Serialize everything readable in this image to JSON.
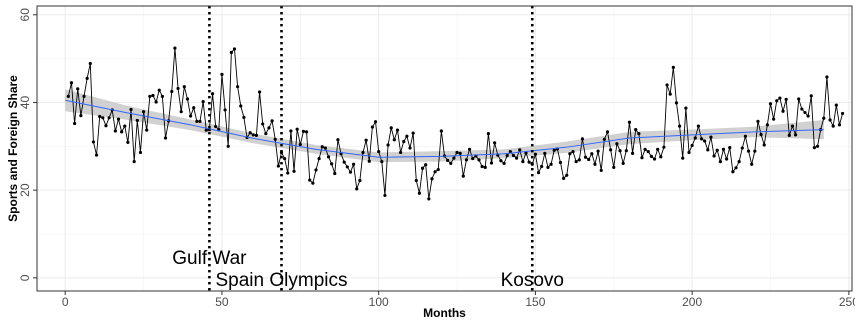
{
  "chart_data": {
    "type": "line",
    "xlabel": "Months",
    "ylabel": "Sports and Foreign Share",
    "xlim": [
      -9,
      251
    ],
    "ylim": [
      -3,
      62
    ],
    "x_ticks": [
      0,
      50,
      100,
      150,
      200,
      250
    ],
    "y_ticks": [
      0,
      20,
      40,
      60
    ],
    "grid": true,
    "series": [
      {
        "values": [
          41.4,
          44.5,
          35.2,
          43.1,
          37.0,
          41.4,
          45.5,
          48.9,
          31.0,
          28.0,
          36.8,
          36.5,
          34.7,
          36.5,
          38.3,
          33.5,
          36.2,
          33.3,
          34.6,
          30.9,
          38.4,
          26.5,
          35.9,
          28.6,
          37.9,
          33.7,
          41.4,
          41.6,
          40.1,
          42.8,
          41.4,
          31.9,
          35.8,
          42.5,
          52.4,
          43.2,
          37.9,
          43.6,
          40.8,
          36.9,
          38.8,
          35.7,
          35.7,
          40.2,
          33.7,
          33.8,
          42.0,
          34.5,
          33.8,
          46.4,
          38.3,
          30.0,
          51.4,
          52.2,
          43.6,
          39.2,
          36.6,
          32.0,
          33.1,
          32.6,
          32.5,
          42.4,
          35.1,
          32.9,
          34.2,
          35.8,
          31.6,
          25.5,
          28.6,
          27.2,
          23.9,
          33.5,
          24.3,
          33.9,
          30.4,
          33.4,
          33.3,
          22.3,
          21.6,
          24.6,
          27.2,
          29.9,
          29.6,
          27.6,
          26.0,
          23.8,
          31.5,
          28.3,
          26.4,
          25.3,
          24.1,
          25.9,
          20.3,
          22.2,
          28.6,
          31.4,
          26.6,
          34.4,
          35.6,
          28.8,
          26.5,
          18.8,
          30.3,
          34.2,
          31.5,
          33.7,
          28.6,
          31.1,
          32.3,
          29.6,
          33.0,
          22.2,
          19.3,
          25.0,
          25.8,
          18.0,
          22.6,
          24.2,
          24.7,
          33.5,
          27.8,
          26.8,
          26.1,
          27.3,
          28.6,
          28.4,
          23.2,
          26.9,
          29.3,
          27.2,
          27.8,
          26.9,
          25.4,
          25.2,
          32.9,
          26.2,
          30.8,
          28.0,
          26.7,
          26.1,
          27.9,
          28.8,
          27.9,
          27.3,
          29.2,
          26.5,
          28.5,
          26.4,
          25.9,
          28.2,
          24.0,
          25.4,
          28.4,
          25.2,
          25.9,
          29.1,
          29.4,
          26.3,
          22.7,
          23.4,
          28.3,
          28.8,
          26.5,
          26.9,
          31.7,
          27.5,
          27.0,
          28.3,
          25.9,
          28.9,
          24.5,
          31.6,
          33.3,
          29.2,
          25.2,
          30.6,
          29.0,
          26.1,
          29.0,
          35.5,
          28.4,
          33.8,
          32.9,
          27.4,
          29.3,
          28.8,
          27.7,
          27.1,
          29.3,
          27.6,
          29.8,
          44.0,
          41.9,
          48.0,
          39.9,
          34.6,
          27.3,
          38.7,
          28.6,
          30.2,
          31.9,
          34.6,
          31.7,
          31.2,
          29.2,
          32.1,
          27.8,
          29.1,
          26.5,
          29.3,
          27.1,
          29.7,
          24.2,
          25.1,
          26.5,
          29.6,
          32.3,
          28.9,
          25.9,
          28.9,
          35.7,
          32.7,
          30.3,
          34.9,
          39.7,
          36.2,
          40.4,
          41.0,
          38.0,
          40.7,
          32.5,
          34.6,
          32.6,
          40.8,
          38.5,
          37.7,
          36.9,
          41.5,
          29.7,
          30.0,
          33.8,
          36.4,
          45.8,
          36.0,
          34.6,
          39.4,
          34.9,
          37.5
        ]
      }
    ],
    "smooth": {
      "x": [
        0,
        20,
        40,
        60,
        80,
        100,
        120,
        140,
        160,
        180,
        200,
        220,
        242
      ],
      "y": [
        40.5,
        37.6,
        34.9,
        31.8,
        29.3,
        27.5,
        27.7,
        28.3,
        29.8,
        31.9,
        32.6,
        33.3,
        33.8
      ],
      "band": [
        2.5,
        1.6,
        1.2,
        1.1,
        1.0,
        1.1,
        1.2,
        1.0,
        1.3,
        1.4,
        1.2,
        1.2,
        2.2
      ]
    },
    "annotations": [
      {
        "x": 46,
        "label": "Gulf War"
      },
      {
        "x": 69,
        "label": "Spain Olympics"
      },
      {
        "x": 149,
        "label": "Kosovo"
      }
    ]
  }
}
